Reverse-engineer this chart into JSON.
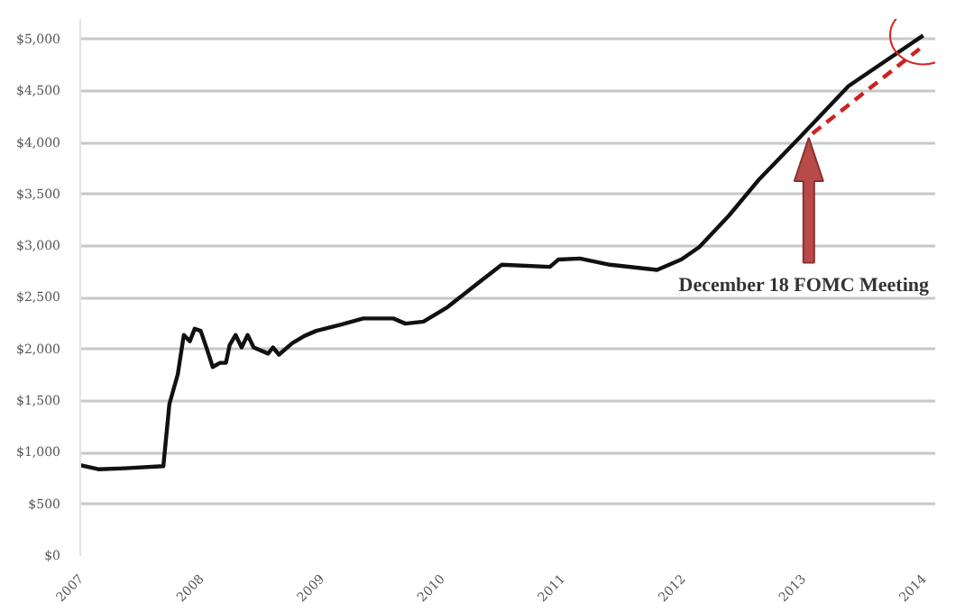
{
  "chart_data": {
    "type": "line",
    "x": [
      2007.0,
      2007.15,
      2007.37,
      2007.69,
      2007.74,
      2007.81,
      2007.86,
      2007.91,
      2007.95,
      2008.0,
      2008.05,
      2008.1,
      2008.16,
      2008.21,
      2008.24,
      2008.29,
      2008.34,
      2008.39,
      2008.44,
      2008.56,
      2008.6,
      2008.65,
      2008.76,
      2008.86,
      2008.96,
      2009.16,
      2009.35,
      2009.6,
      2009.7,
      2009.85,
      2010.05,
      2010.3,
      2010.5,
      2010.9,
      2010.97,
      2011.15,
      2011.4,
      2011.79,
      2011.99,
      2012.14,
      2012.39,
      2012.64,
      2012.98,
      2013.38,
      2014.0
    ],
    "series": [
      {
        "color": "#111111",
        "values": [
          880,
          840,
          850,
          870,
          1470,
          1760,
          2140,
          2080,
          2200,
          2180,
          2010,
          1830,
          1870,
          1870,
          2040,
          2140,
          2020,
          2140,
          2020,
          1960,
          2020,
          1950,
          2060,
          2130,
          2180,
          2240,
          2300,
          2300,
          2250,
          2270,
          2410,
          2640,
          2820,
          2800,
          2870,
          2880,
          2820,
          2770,
          2870,
          2990,
          3300,
          3650,
          4060,
          4550,
          5040
        ]
      },
      {
        "color": "#cc2222",
        "line_style": "dashed",
        "x": [
          2013.08,
          2013.97
        ],
        "values": [
          4090,
          4910
        ]
      }
    ],
    "xlim": [
      2007.0,
      2014.1
    ],
    "ylim": [
      0,
      5200
    ],
    "xticks": [
      2007,
      2008,
      2009,
      2010,
      2011,
      2012,
      2013,
      2014
    ],
    "yticks": [
      {
        "value": 0,
        "label": "$0"
      },
      {
        "value": 500,
        "label": "$500"
      },
      {
        "value": 1000,
        "label": "$1,000"
      },
      {
        "value": 1500,
        "label": "$1,500"
      },
      {
        "value": 2000,
        "label": "$2,000"
      },
      {
        "value": 2500,
        "label": "$2,500"
      },
      {
        "value": 3000,
        "label": "$3,000"
      },
      {
        "value": 3500,
        "label": "$3,500"
      },
      {
        "value": 4000,
        "label": "$4,000"
      },
      {
        "value": 4500,
        "label": "$4,500"
      },
      {
        "value": 5000,
        "label": "$5,000"
      }
    ],
    "grid": "y",
    "marker": "none",
    "line_style": "solid",
    "annotations": [
      "December 18 FOMC Meeting"
    ]
  }
}
